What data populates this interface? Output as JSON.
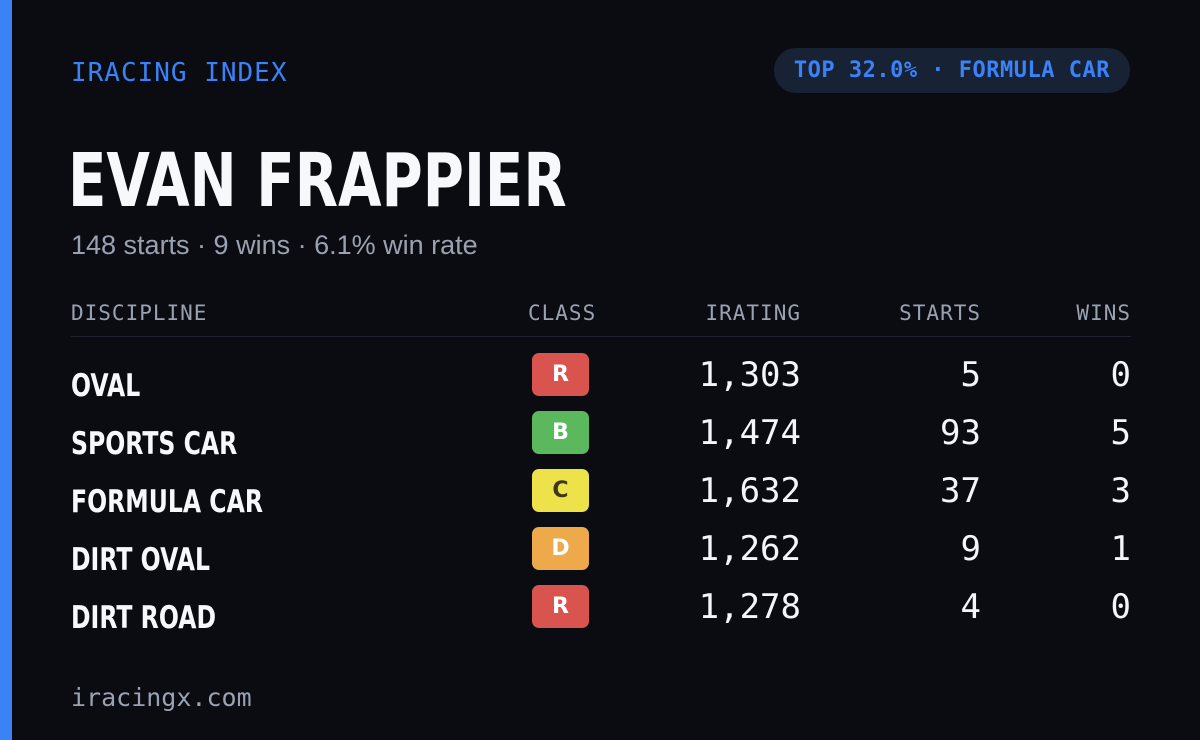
{
  "brand": "IRACING INDEX",
  "rank_badge": "TOP 32.0% · FORMULA CAR",
  "driver": {
    "name": "EVAN FRAPPIER",
    "summary": "148 starts · 9 wins · 6.1% win rate"
  },
  "table": {
    "headers": {
      "discipline": "DISCIPLINE",
      "class": "CLASS",
      "irating": "IRATING",
      "starts": "STARTS",
      "wins": "WINS"
    },
    "rows": [
      {
        "discipline": "OVAL",
        "class": "R",
        "class_color": "#d9534f",
        "class_text_color": "#ffffff",
        "irating": "1,303",
        "starts": "5",
        "wins": "0"
      },
      {
        "discipline": "SPORTS CAR",
        "class": "B",
        "class_color": "#5cb85c",
        "class_text_color": "#ffffff",
        "irating": "1,474",
        "starts": "93",
        "wins": "5"
      },
      {
        "discipline": "FORMULA CAR",
        "class": "C",
        "class_color": "#ede24a",
        "class_text_color": "#3a3a1a",
        "irating": "1,632",
        "starts": "37",
        "wins": "3"
      },
      {
        "discipline": "DIRT OVAL",
        "class": "D",
        "class_color": "#eea94b",
        "class_text_color": "#ffffff",
        "irating": "1,262",
        "starts": "9",
        "wins": "1"
      },
      {
        "discipline": "DIRT ROAD",
        "class": "R",
        "class_color": "#d9534f",
        "class_text_color": "#ffffff",
        "irating": "1,278",
        "starts": "4",
        "wins": "0"
      }
    ]
  },
  "footer": "iracingx.com",
  "colors": {
    "accent": "#3b82f6",
    "background": "#0a0c12",
    "pill_background": "#172235"
  }
}
